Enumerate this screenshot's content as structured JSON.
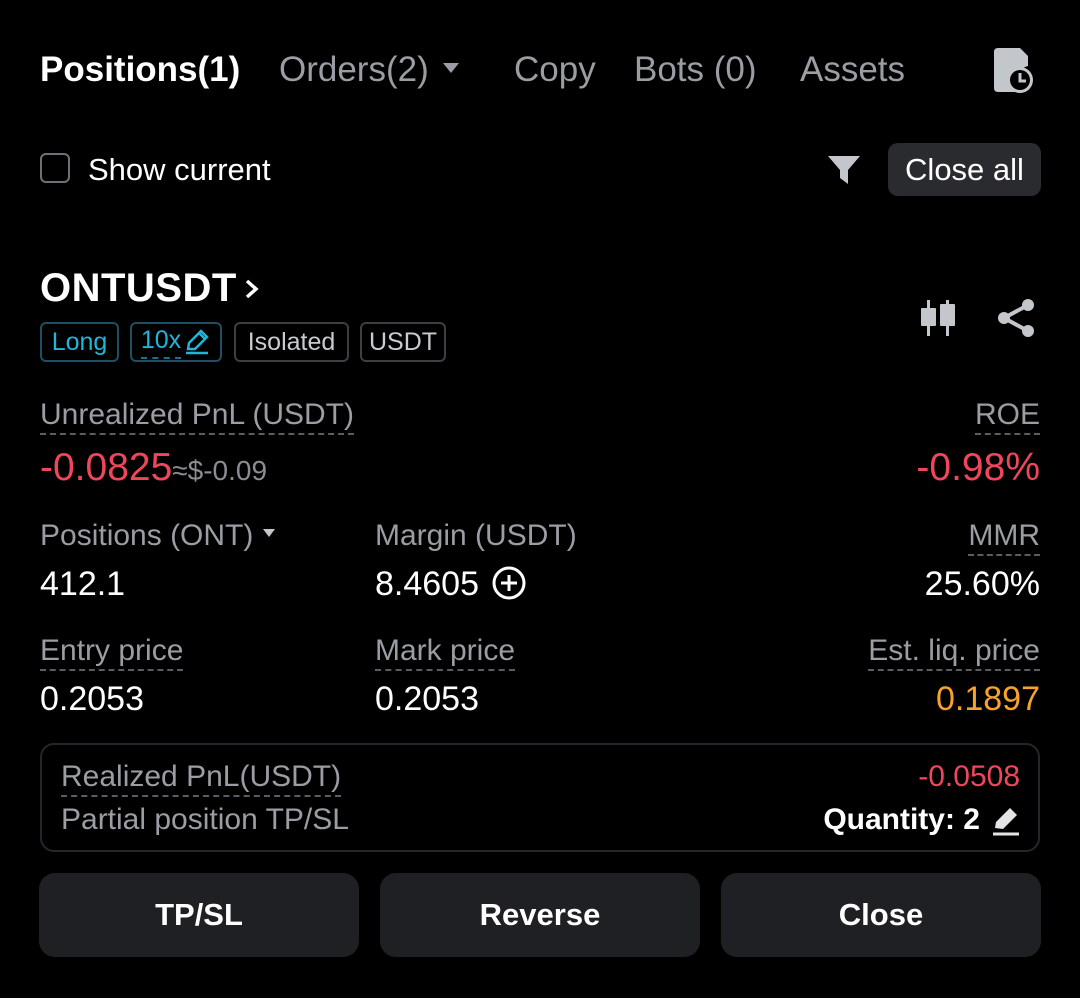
{
  "tabs": {
    "positions": "Positions(1)",
    "orders": "Orders(2)",
    "copy": "Copy",
    "bots": "Bots (0)",
    "assets": "Assets"
  },
  "filter_row": {
    "show_current": "Show current",
    "close_all": "Close all"
  },
  "position": {
    "symbol": "ONTUSDT",
    "tags": {
      "side": "Long",
      "leverage": "10x",
      "margin_mode": "Isolated",
      "settle": "USDT"
    },
    "unrealized_pnl_label": "Unrealized PnL (USDT)",
    "unrealized_pnl_value": "-0.0825",
    "unrealized_pnl_approx": "≈$-0.09",
    "roe_label": "ROE",
    "roe_value": "-0.98%",
    "positions_label": "Positions (ONT)",
    "positions_value": "412.1",
    "margin_label": "Margin (USDT)",
    "margin_value": "8.4605",
    "mmr_label": "MMR",
    "mmr_value": "25.60%",
    "entry_price_label": "Entry price",
    "entry_price_value": "0.2053",
    "mark_price_label": "Mark price",
    "mark_price_value": "0.2053",
    "liq_price_label": "Est. liq. price",
    "liq_price_value": "0.1897",
    "realized_pnl_label": "Realized PnL(USDT)",
    "realized_pnl_value": "-0.0508",
    "partial_tpsl_label": "Partial position TP/SL",
    "partial_tpsl_quantity": "Quantity: 2"
  },
  "actions": {
    "tpsl": "TP/SL",
    "reverse": "Reverse",
    "close": "Close"
  },
  "icons": [
    "history-clock-icon",
    "filter-icon",
    "chevron-right-icon",
    "edit-icon",
    "candlestick-chart-icon",
    "share-icon",
    "add-circle-icon"
  ],
  "colors": {
    "accent_blue": "#1fb6d9",
    "negative": "#f0465b",
    "warning": "#f7a329",
    "background": "#000000"
  }
}
